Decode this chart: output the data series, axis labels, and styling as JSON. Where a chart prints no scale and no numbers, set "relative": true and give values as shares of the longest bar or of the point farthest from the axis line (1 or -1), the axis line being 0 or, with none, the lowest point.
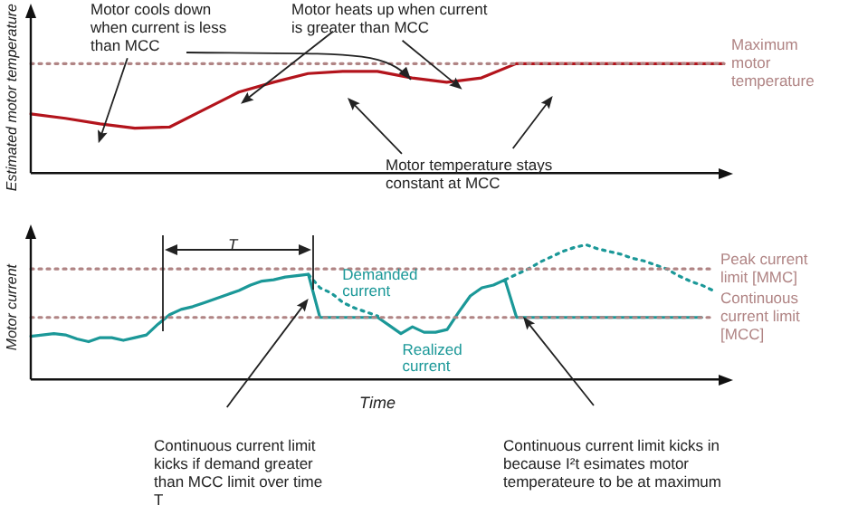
{
  "chart_data": [
    {
      "type": "line",
      "relative": true,
      "ylabel": "Estimated motor temperature",
      "marker": "none",
      "categories": [
        null,
        null,
        null,
        null,
        null,
        null,
        null,
        null,
        null,
        null,
        null,
        null,
        null,
        null,
        null,
        null,
        null,
        null,
        null,
        null,
        null
      ],
      "series": [
        {
          "name": "Maximum motor temperature",
          "color": "#b08484",
          "line_style": "dotted",
          "values": [
            1,
            1,
            1,
            1,
            1,
            1,
            1,
            1,
            1,
            1,
            1,
            1,
            1,
            1,
            1,
            1,
            1,
            1,
            1,
            1,
            1
          ]
        },
        {
          "color": "#b3141c",
          "line_style": "solid",
          "values": [
            0.54,
            0.5,
            0.45,
            0.41,
            0.42,
            0.58,
            0.74,
            0.83,
            0.91,
            0.93,
            0.93,
            0.87,
            0.83,
            0.87,
            1,
            1,
            1,
            1,
            1,
            1,
            1
          ]
        }
      ],
      "annotations": [
        "Motor cools down when current is less than MCC",
        "Motor heats up when current is greater than MCC",
        "Motor temperature stays constant at MCC"
      ]
    },
    {
      "type": "line",
      "relative": true,
      "ylabel": "Motor current",
      "xlabel": "Time",
      "marker": "none",
      "categories": [
        null,
        null,
        null,
        null,
        null,
        null,
        null,
        null,
        null,
        null,
        null,
        null,
        null,
        null,
        null,
        null,
        null,
        null,
        null,
        null,
        null,
        null,
        null,
        null,
        null,
        null,
        null,
        null,
        null,
        null,
        null,
        null,
        null,
        null,
        null,
        null,
        null,
        null,
        null,
        null,
        null,
        null,
        null,
        null,
        null,
        null,
        null,
        null,
        null,
        null,
        null,
        null,
        null,
        null,
        null,
        null,
        null,
        null,
        null,
        null
      ],
      "series": [
        {
          "name": "Peak current limit [MMC]",
          "color": "#b08484",
          "line_style": "dotted",
          "values": [
            0.82,
            0.82,
            0.82,
            0.82,
            0.82,
            0.82,
            0.82,
            0.82,
            0.82,
            0.82,
            0.82,
            0.82,
            0.82,
            0.82,
            0.82,
            0.82,
            0.82,
            0.82,
            0.82,
            0.82,
            0.82,
            0.82,
            0.82,
            0.82,
            0.82,
            0.82,
            0.82,
            0.82,
            0.82,
            0.82,
            0.82,
            0.82,
            0.82,
            0.82,
            0.82,
            0.82,
            0.82,
            0.82,
            0.82,
            0.82,
            0.82,
            0.82,
            0.82,
            0.82,
            0.82,
            0.82,
            0.82,
            0.82,
            0.82,
            0.82,
            0.82,
            0.82,
            0.82,
            0.82,
            0.82,
            0.82,
            0.82,
            0.82,
            0.82,
            0.82
          ]
        },
        {
          "name": "Continuous current limit [MCC]",
          "color": "#b08484",
          "line_style": "dotted",
          "values": [
            0.46,
            0.46,
            0.46,
            0.46,
            0.46,
            0.46,
            0.46,
            0.46,
            0.46,
            0.46,
            0.46,
            0.46,
            0.46,
            0.46,
            0.46,
            0.46,
            0.46,
            0.46,
            0.46,
            0.46,
            0.46,
            0.46,
            0.46,
            0.46,
            0.46,
            0.46,
            0.46,
            0.46,
            0.46,
            0.46,
            0.46,
            0.46,
            0.46,
            0.46,
            0.46,
            0.46,
            0.46,
            0.46,
            0.46,
            0.46,
            0.46,
            0.46,
            0.46,
            0.46,
            0.46,
            0.46,
            0.46,
            0.46,
            0.46,
            0.46,
            0.46,
            0.46,
            0.46,
            0.46,
            0.46,
            0.46,
            0.46,
            0.46,
            0.46,
            0.46
          ]
        },
        {
          "name": "Realized current",
          "color": "#1b9898",
          "line_style": "solid",
          "values": [
            0.32,
            0.33,
            0.34,
            0.33,
            0.3,
            0.28,
            0.31,
            0.31,
            0.29,
            0.31,
            0.33,
            0.41,
            0.48,
            0.52,
            0.54,
            0.57,
            0.6,
            0.63,
            0.66,
            0.7,
            0.73,
            0.74,
            0.76,
            0.77,
            0.78,
            0.46,
            0.46,
            0.46,
            0.46,
            0.46,
            0.46,
            0.4,
            0.34,
            0.39,
            0.35,
            0.35,
            0.37,
            0.5,
            0.62,
            0.68,
            0.7,
            0.74,
            0.46,
            0.46,
            0.46,
            0.46,
            0.46,
            0.46,
            0.46,
            0.46,
            0.46,
            0.46,
            0.46,
            0.46,
            0.46,
            0.46,
            0.46,
            0.46,
            0.46,
            null
          ]
        },
        {
          "name": "Demanded current",
          "color": "#1b9898",
          "line_style": "dotted",
          "values": [
            null,
            null,
            null,
            null,
            null,
            null,
            null,
            null,
            null,
            null,
            null,
            null,
            null,
            null,
            null,
            null,
            null,
            null,
            null,
            null,
            null,
            null,
            null,
            null,
            0.78,
            0.68,
            0.64,
            0.57,
            0.53,
            0.5,
            0.47,
            null,
            null,
            null,
            null,
            null,
            null,
            null,
            null,
            null,
            null,
            0.74,
            0.78,
            0.82,
            0.87,
            0.91,
            0.95,
            0.98,
            1,
            0.97,
            0.95,
            0.93,
            0.9,
            0.88,
            0.85,
            0.82,
            0.77,
            0.73,
            0.7,
            0.66
          ]
        }
      ],
      "annotations": [
        "T",
        "Continuous current limit kicks if demand greater than MCC limit over time T",
        "Continuous current limit kicks in because I²t esimates motor temperateure to be at maximum"
      ]
    }
  ]
}
